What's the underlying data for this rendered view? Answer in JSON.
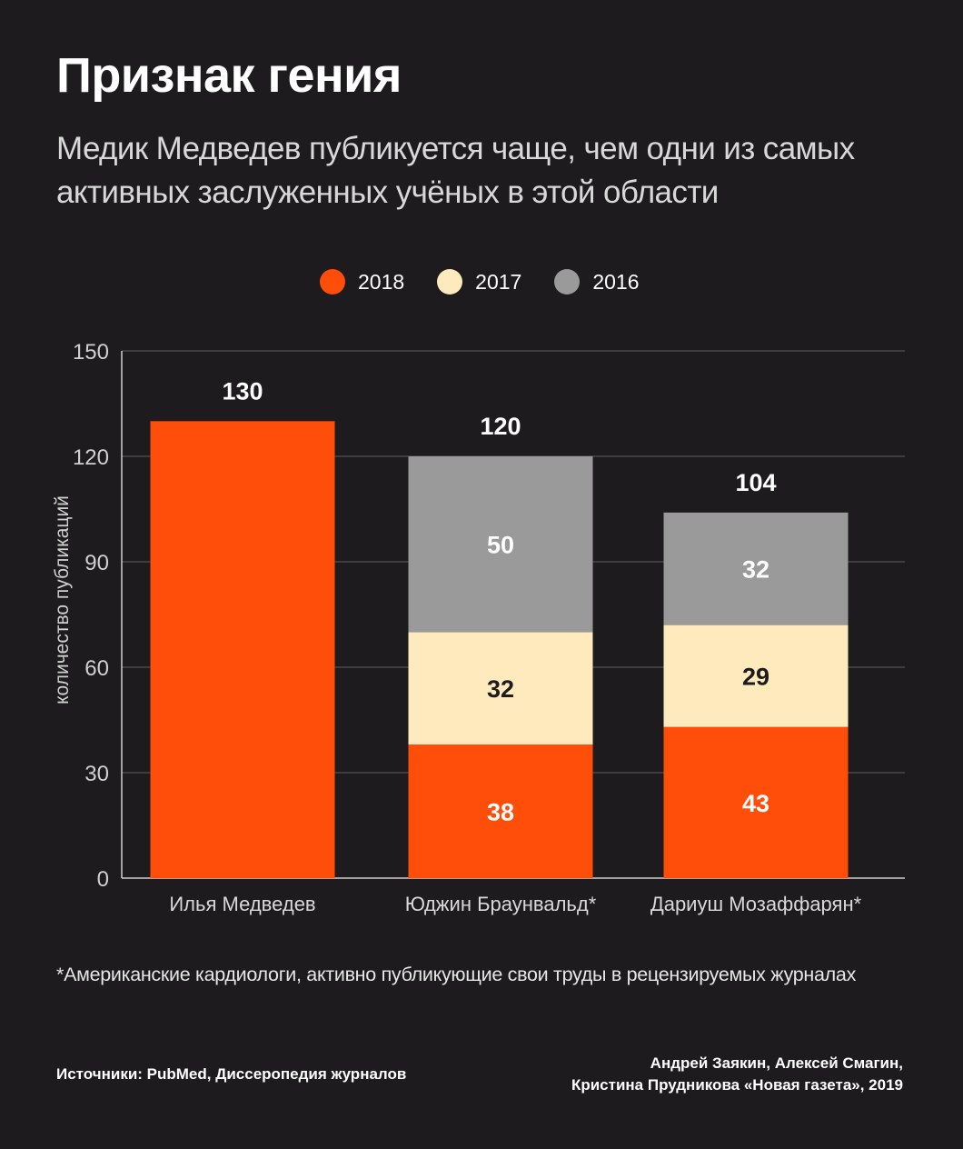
{
  "title": "Признак гения",
  "subtitle_line1": "Медик Медведев публикуется чаще, чем одни из самых",
  "subtitle_line2": "активных заслуженных учёных в этой области",
  "legend": [
    {
      "label": "2018",
      "color": "#ff4d0a"
    },
    {
      "label": "2017",
      "color": "#feeabc"
    },
    {
      "label": "2016",
      "color": "#9a9a9a"
    }
  ],
  "chart_data": {
    "type": "bar",
    "stacked": true,
    "ylabel": "количество публикаций",
    "ylim": [
      0,
      150
    ],
    "yticks": [
      0,
      30,
      60,
      90,
      120,
      150
    ],
    "grid": true,
    "legend_position": "top-center",
    "categories": [
      "Илья Медведев",
      "Юджин Браунвальд*",
      "Дариуш Мозаффарян*"
    ],
    "totals": [
      130,
      120,
      104
    ],
    "series": [
      {
        "name": "2018",
        "color": "#ff4d0a",
        "label_color": "#ffffff",
        "values": [
          130,
          38,
          43
        ],
        "labels": [
          null,
          38,
          43
        ]
      },
      {
        "name": "2017",
        "color": "#feeabc",
        "label_color": "#1d1b1d",
        "values": [
          0,
          32,
          29
        ],
        "labels": [
          null,
          32,
          29
        ]
      },
      {
        "name": "2016",
        "color": "#9a9a9a",
        "label_color": "#ffffff",
        "values": [
          0,
          50,
          32
        ],
        "labels": [
          null,
          50,
          32
        ]
      }
    ]
  },
  "footnote": "*Американские кардиологи, активно публикующие свои труды в рецензируемых журналах",
  "sources": "Источники: PubMed, Диссеропедия журналов",
  "authors_line1": "Андрей Заякин, Алексей Смагин,",
  "authors_line2": "Кристина Прудникова «Новая газета», 2019"
}
